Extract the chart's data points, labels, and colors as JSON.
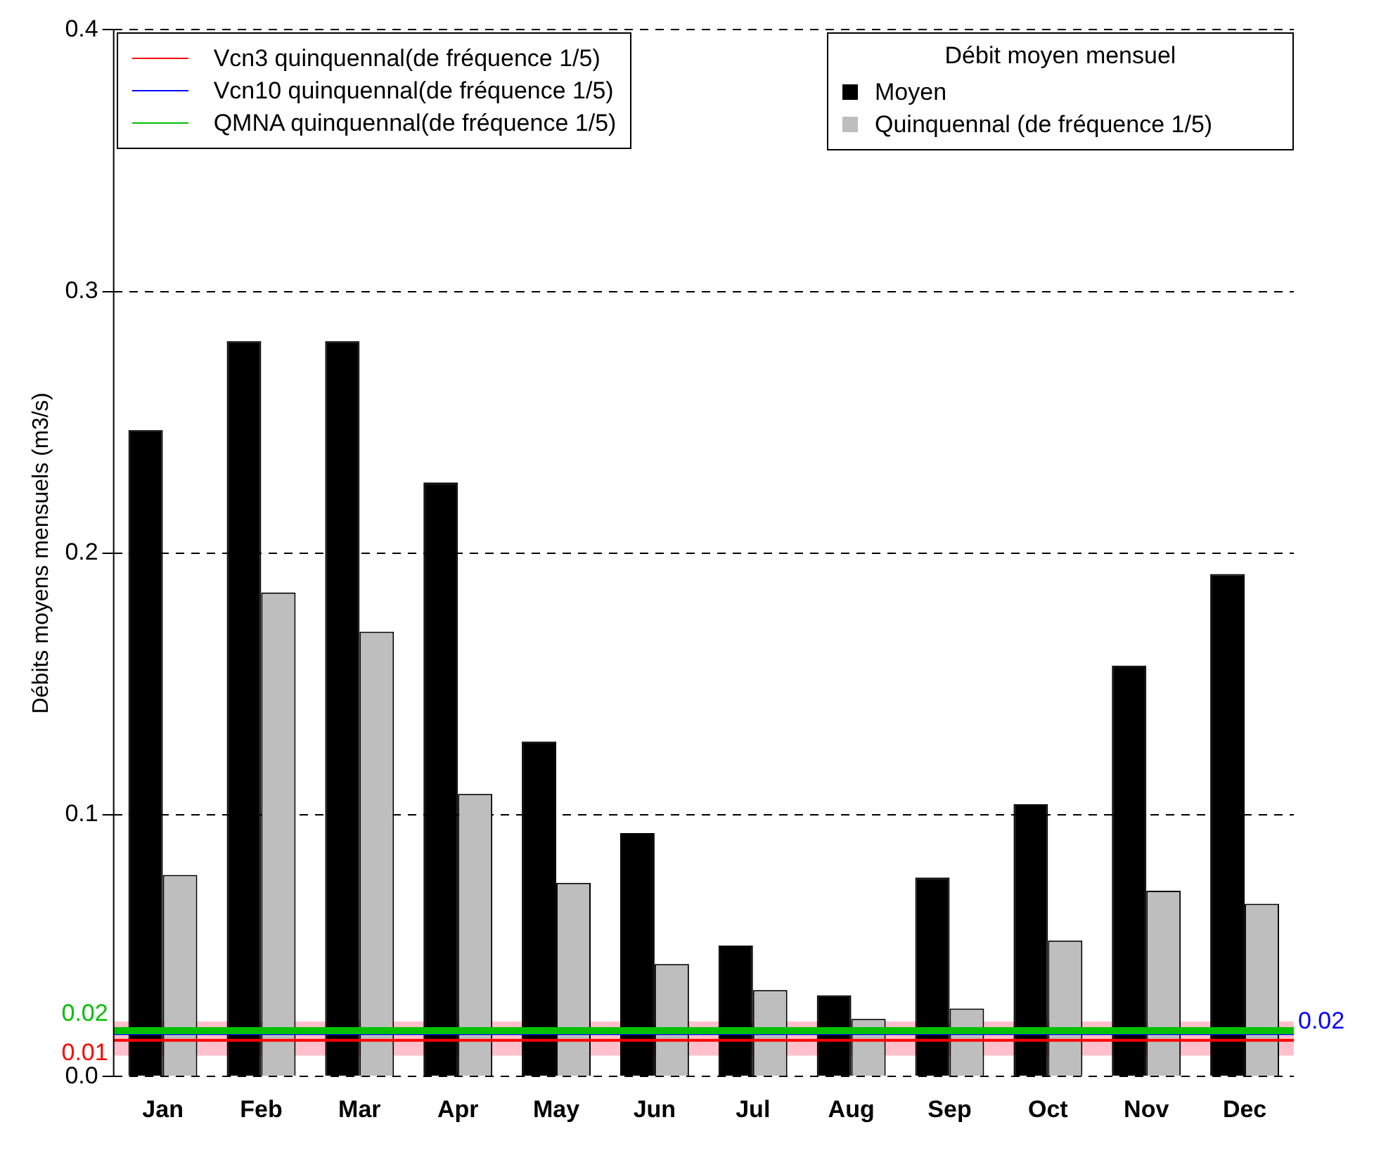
{
  "chart_data": {
    "type": "bar",
    "ylabel": "Débits moyens mensuels (m3/s)",
    "legend_title": "Débit moyen mensuel",
    "categories": [
      "Jan",
      "Feb",
      "Mar",
      "Apr",
      "May",
      "Jun",
      "Jul",
      "Aug",
      "Sep",
      "Oct",
      "Nov",
      "Dec"
    ],
    "series": [
      {
        "name": "Moyen",
        "color": "#000000",
        "values": [
          0.247,
          0.281,
          0.281,
          0.227,
          0.128,
          0.093,
          0.05,
          0.031,
          0.076,
          0.104,
          0.157,
          0.192
        ]
      },
      {
        "name": "Quinquennal (de fréquence 1/5)",
        "color": "#bebebe",
        "values": [
          0.077,
          0.185,
          0.17,
          0.108,
          0.074,
          0.043,
          0.033,
          0.022,
          0.026,
          0.052,
          0.071,
          0.066
        ]
      }
    ],
    "ylim": [
      0,
      0.4
    ],
    "yticks": [
      {
        "value": 0,
        "label": "0.0"
      },
      0.1,
      0.2,
      0.3,
      0.4
    ],
    "grid": "y",
    "legend": "top right",
    "bands": [
      {
        "axis": "y",
        "from": 0.008,
        "to": 0.021,
        "color": "#ffc0cb"
      }
    ],
    "ref_lines": [
      {
        "axis": "y",
        "value": 0.0138,
        "label": "Vcn3 quinquennal(de fréquence 1/5)",
        "color": "#ff0000"
      },
      {
        "axis": "y",
        "value": 0.0164,
        "label": "Vcn10 quinquennal(de fréquence 1/5)",
        "color": "#0000ff"
      },
      {
        "axis": "y",
        "value": 0.0175,
        "label": "QMNA quinquennal(de fréquence 1/5)",
        "color": "#00c000"
      }
    ],
    "annotations": [
      "0.01",
      "0.02",
      "0.02"
    ]
  }
}
